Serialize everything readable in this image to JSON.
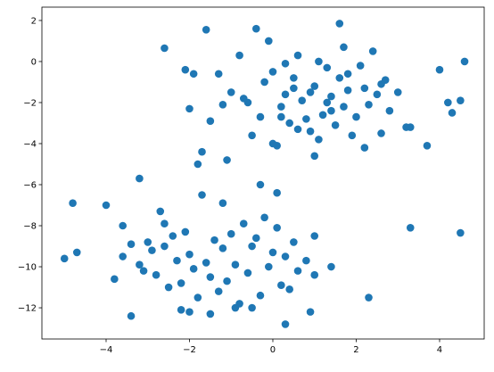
{
  "chart_data": {
    "type": "scatter",
    "color": "#1f77b4",
    "grid": false,
    "xlim": [
      -5.54,
      5.07
    ],
    "ylim": [
      -13.52,
      2.65
    ],
    "xticks": [
      {
        "value": -4,
        "label": "−4"
      },
      {
        "value": -2,
        "label": "−2"
      },
      0,
      2,
      4
    ],
    "yticks": [
      2,
      0,
      {
        "value": -2,
        "label": "−2"
      },
      {
        "value": -4,
        "label": "−4"
      },
      {
        "value": -6,
        "label": "−6"
      },
      {
        "value": -8,
        "label": "−8"
      },
      {
        "value": -10,
        "label": "−10"
      },
      {
        "value": -12,
        "label": "−12"
      }
    ],
    "x": [
      -2.6,
      -1.6,
      1.6,
      4.6,
      -2.1,
      -2.0,
      -1.9,
      -1.5,
      -1.3,
      -1.0,
      -0.8,
      -0.6,
      -0.4,
      -0.3,
      -0.2,
      0.0,
      0.1,
      0.2,
      0.3,
      0.4,
      0.5,
      0.6,
      0.7,
      0.8,
      0.9,
      1.0,
      1.1,
      1.2,
      1.3,
      1.4,
      1.5,
      1.6,
      1.7,
      1.8,
      1.9,
      2.0,
      2.1,
      2.2,
      2.3,
      2.4,
      2.5,
      2.6,
      2.7,
      2.8,
      3.0,
      3.3,
      3.7,
      4.0,
      4.2,
      4.3,
      4.5,
      -0.5,
      0.2,
      0.6,
      1.0,
      1.4,
      1.8,
      2.2,
      -0.1,
      0.9,
      1.3,
      0.3,
      -0.7,
      2.6,
      1.1,
      0.0,
      3.2,
      -1.2,
      0.5,
      1.7,
      -5.0,
      -4.8,
      -4.7,
      -4.0,
      -3.8,
      -3.6,
      -3.4,
      -3.2,
      -3.1,
      -3.0,
      -2.9,
      -2.8,
      -2.7,
      -2.6,
      -2.5,
      -2.4,
      -2.3,
      -2.2,
      -2.1,
      -2.0,
      -1.9,
      -1.8,
      -1.7,
      -1.6,
      -1.5,
      -1.4,
      -1.3,
      -1.2,
      -1.1,
      -1.0,
      -0.9,
      -0.8,
      -0.7,
      -0.6,
      -0.5,
      -0.4,
      -0.3,
      -0.2,
      -0.1,
      0.0,
      0.1,
      0.2,
      0.3,
      0.4,
      0.5,
      0.6,
      0.8,
      1.0,
      1.4,
      2.3,
      3.3,
      4.5,
      -1.8,
      -1.7,
      -1.1,
      -3.2,
      -3.4,
      0.3,
      -2.2,
      -1.5,
      -0.9,
      -0.3,
      0.1,
      -2.6,
      -1.2,
      -0.5,
      -2.0,
      -3.6,
      0.9,
      1.0
    ],
    "y": [
      0.65,
      1.55,
      1.85,
      0.0,
      -0.4,
      -2.3,
      -0.6,
      -2.9,
      -0.6,
      -1.5,
      0.3,
      -2.0,
      1.6,
      -2.7,
      -1.0,
      -0.5,
      -4.1,
      -2.2,
      -1.6,
      -3.0,
      -0.8,
      0.3,
      -1.9,
      -2.8,
      -3.4,
      -1.2,
      0.0,
      -2.6,
      -0.3,
      -1.7,
      -3.1,
      -0.8,
      -2.2,
      -1.4,
      -3.6,
      -2.7,
      -0.2,
      -1.3,
      -2.1,
      0.5,
      -1.6,
      -3.5,
      -0.9,
      -2.4,
      -1.5,
      -3.2,
      -4.1,
      -0.4,
      -2.0,
      -2.5,
      -1.9,
      -3.6,
      -2.7,
      -3.3,
      -4.6,
      -2.4,
      -0.6,
      -4.2,
      1.0,
      -1.5,
      -2.0,
      -0.1,
      -1.8,
      -1.1,
      -3.8,
      -4.0,
      -3.2,
      -2.1,
      -1.3,
      0.7,
      -9.6,
      -6.9,
      -9.3,
      -7.0,
      -10.6,
      -9.5,
      -8.9,
      -9.9,
      -10.2,
      -8.8,
      -9.2,
      -10.4,
      -7.3,
      -9.0,
      -11.0,
      -8.5,
      -9.7,
      -10.8,
      -8.3,
      -9.4,
      -10.1,
      -11.5,
      -6.5,
      -9.8,
      -10.5,
      -8.7,
      -11.2,
      -9.1,
      -10.7,
      -8.4,
      -9.9,
      -11.8,
      -7.9,
      -10.3,
      -9.0,
      -8.6,
      -11.4,
      -7.6,
      -10.0,
      -9.3,
      -8.1,
      -10.9,
      -9.5,
      -11.1,
      -8.8,
      -10.2,
      -9.7,
      -8.5,
      -10.0,
      -11.5,
      -8.1,
      -8.35,
      -5.0,
      -4.4,
      -4.8,
      -5.7,
      -12.4,
      -12.8,
      -12.1,
      -12.3,
      -12.0,
      -6.0,
      -6.4,
      -7.9,
      -6.9,
      -12.0,
      -12.2,
      -8.0,
      -12.2,
      -10.4
    ]
  }
}
